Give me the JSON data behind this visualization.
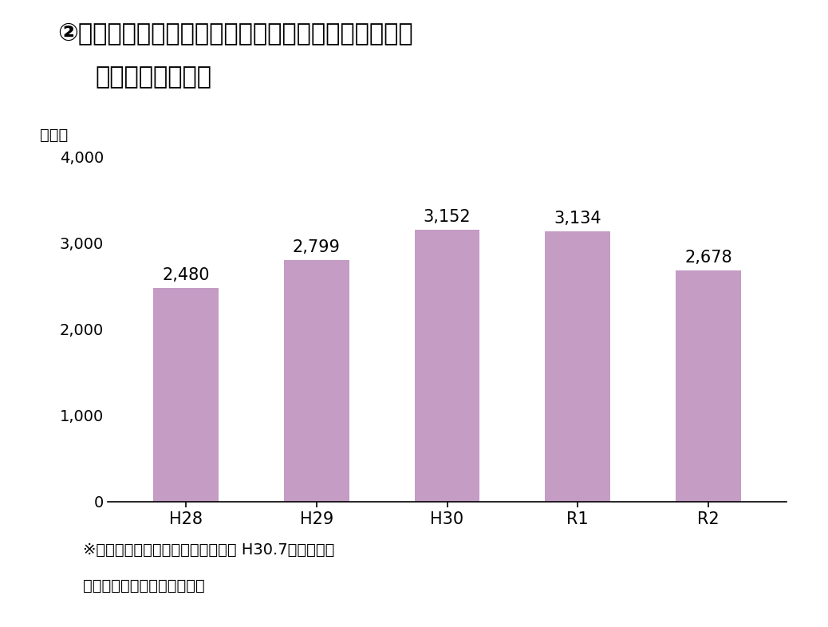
{
  "title_line1": "②「はっち」及び「マチニワ」における市民等主催の",
  "title_line2": "文化芸術活動件数",
  "ylabel_unit": "（件）",
  "categories": [
    "H28",
    "H29",
    "H30",
    "R1",
    "R2"
  ],
  "values": [
    2480,
    2799,
    3152,
    3134,
    2678
  ],
  "bar_color": "#c49cc4",
  "ylim": [
    0,
    4000
  ],
  "yticks": [
    0,
    1000,
    2000,
    3000,
    4000
  ],
  "ytick_labels": [
    "0",
    "1,000",
    "2,000",
    "3,000",
    "4,000"
  ],
  "note1": "※八戸まちなか広場「マチニワ」は H30.7月オープン",
  "note2": "資料：八戸市（各年度集計）",
  "background_color": "#ffffff",
  "bar_width": 0.5,
  "value_label_fontsize": 15,
  "xtick_fontsize": 15,
  "ytick_fontsize": 14,
  "note_fontsize": 14,
  "title_fontsize": 22
}
